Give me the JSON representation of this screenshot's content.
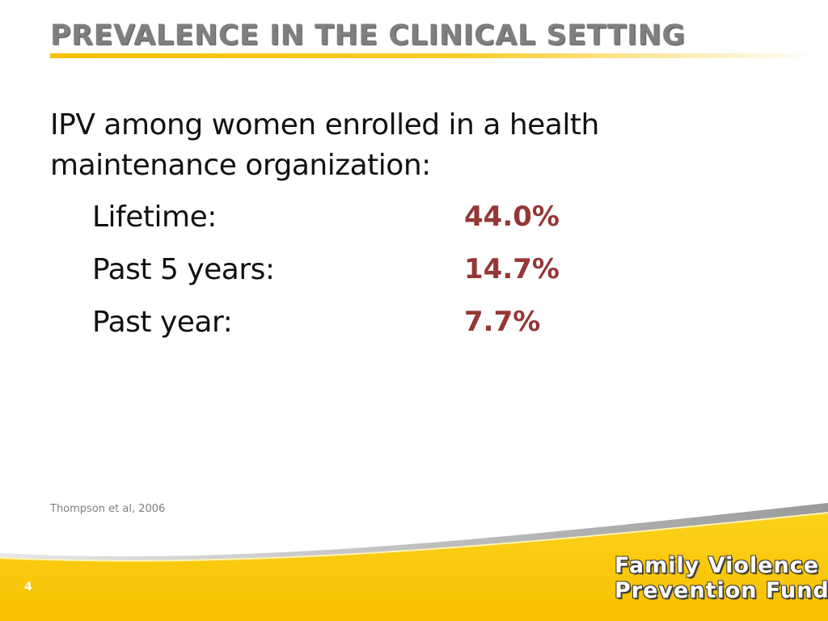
{
  "slide": {
    "title": "PREVALENCE IN THE CLINICAL SETTING",
    "intro_line1": "IPV among women enrolled in a health",
    "intro_line2": "maintenance organization:",
    "stats": [
      {
        "label": "Lifetime:",
        "value": "44.0%"
      },
      {
        "label": "Past 5 years:",
        "value": "14.7%"
      },
      {
        "label": "Past year:",
        "value": "7.7%"
      }
    ],
    "citation": "Thompson et al, 2006",
    "slide_number": "4",
    "logo_line1": "Family Violence",
    "logo_line2": "Prevention Fund"
  },
  "colors": {
    "accent_yellow": "#f5c000",
    "stat_value": "#953735",
    "title_gray": "#7f7f7f"
  }
}
